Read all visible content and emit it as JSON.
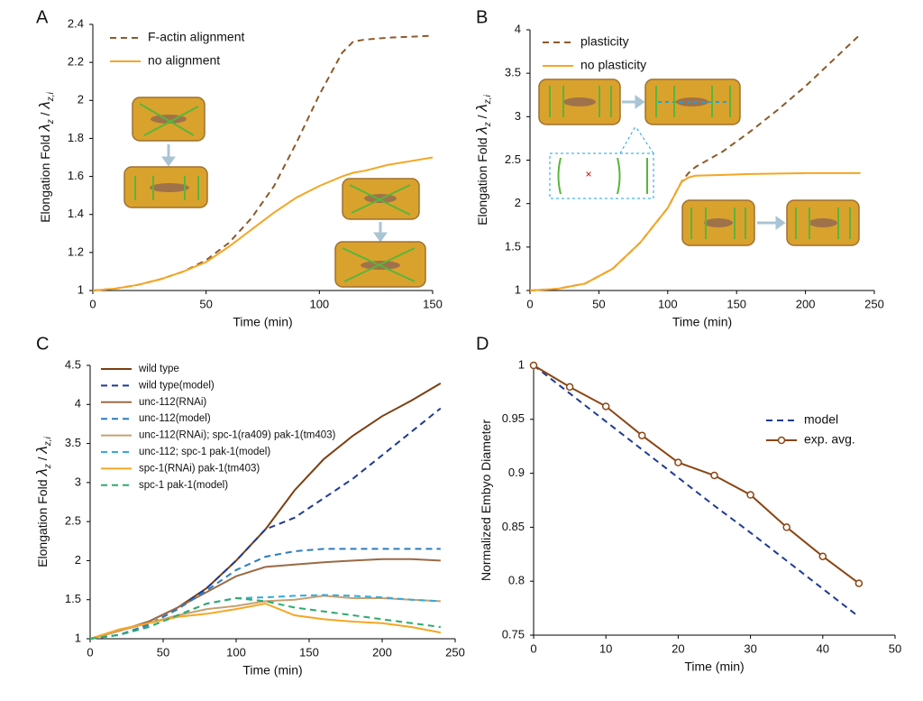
{
  "chart_data": [
    {
      "type": "line",
      "panel_label": "A",
      "xlabel": "Time (min)",
      "ylabel_parts": [
        {
          "text": "Elongation Fold  "
        },
        {
          "text": "λ",
          "italic": true
        },
        {
          "text": "z",
          "sub": true
        },
        {
          "text": " / "
        },
        {
          "text": "λ",
          "italic": true
        },
        {
          "text": "z,i",
          "sub": true
        }
      ],
      "x": [
        0,
        10,
        20,
        30,
        40,
        50,
        60,
        70,
        80,
        90,
        100,
        110,
        115,
        120,
        130,
        140,
        150
      ],
      "series": [
        {
          "name": "F-actin alignment",
          "color": "#8b5a2b",
          "dash": true,
          "values": [
            1,
            1.01,
            1.03,
            1.06,
            1.1,
            1.16,
            1.25,
            1.38,
            1.55,
            1.78,
            2.03,
            2.25,
            2.31,
            2.32,
            2.33,
            2.335,
            2.34
          ]
        },
        {
          "name": "no alignment",
          "color": "#f5a623",
          "dash": false,
          "values": [
            1,
            1.01,
            1.03,
            1.06,
            1.1,
            1.15,
            1.23,
            1.32,
            1.41,
            1.49,
            1.55,
            1.6,
            1.62,
            1.63,
            1.66,
            1.68,
            1.7
          ]
        }
      ],
      "xlim": [
        0,
        150
      ],
      "xticks": [
        0,
        50,
        100,
        150
      ],
      "ylim": [
        1,
        2.4
      ],
      "yticks": [
        1,
        1.2,
        1.4,
        1.6,
        1.8,
        2,
        2.2,
        2.4
      ],
      "legend": "upper left"
    },
    {
      "type": "line",
      "panel_label": "B",
      "xlabel": "Time (min)",
      "ylabel_parts": [
        {
          "text": "Elongation Fold  "
        },
        {
          "text": "λ",
          "italic": true
        },
        {
          "text": "z",
          "sub": true
        },
        {
          "text": " / "
        },
        {
          "text": "λ",
          "italic": true
        },
        {
          "text": "z,i",
          "sub": true
        }
      ],
      "x": [
        0,
        20,
        40,
        60,
        80,
        100,
        110,
        115,
        120,
        140,
        160,
        180,
        200,
        220,
        240
      ],
      "series": [
        {
          "name": "plasticity",
          "color": "#8b5a2b",
          "dash": true,
          "values": [
            1,
            1.02,
            1.08,
            1.25,
            1.55,
            1.95,
            2.25,
            2.35,
            2.42,
            2.6,
            2.83,
            3.08,
            3.35,
            3.65,
            3.95
          ]
        },
        {
          "name": "no plasticity",
          "color": "#f5a623",
          "dash": false,
          "values": [
            1,
            1.02,
            1.08,
            1.25,
            1.55,
            1.95,
            2.25,
            2.3,
            2.32,
            2.33,
            2.34,
            2.345,
            2.35,
            2.35,
            2.35
          ]
        }
      ],
      "xlim": [
        0,
        250
      ],
      "xticks": [
        0,
        50,
        100,
        150,
        200,
        250
      ],
      "ylim": [
        1,
        4
      ],
      "yticks": [
        1,
        1.5,
        2,
        2.5,
        3,
        3.5,
        4
      ],
      "legend": "upper left"
    },
    {
      "type": "line",
      "panel_label": "C",
      "xlabel": "Time (min)",
      "ylabel_parts": [
        {
          "text": "Elongation Fold  "
        },
        {
          "text": "λ",
          "italic": true
        },
        {
          "text": "z",
          "sub": true
        },
        {
          "text": " / "
        },
        {
          "text": "λ",
          "italic": true
        },
        {
          "text": "z,i",
          "sub": true
        }
      ],
      "x": [
        0,
        20,
        40,
        60,
        80,
        100,
        120,
        140,
        160,
        180,
        200,
        220,
        240
      ],
      "series": [
        {
          "name": "wild type",
          "color": "#7b3f10",
          "dash": false,
          "values": [
            1,
            1.1,
            1.22,
            1.4,
            1.65,
            2.0,
            2.4,
            2.9,
            3.3,
            3.6,
            3.85,
            4.05,
            4.27
          ]
        },
        {
          "name": "wild type(model)",
          "color": "#1f3a93",
          "dash": true,
          "values": [
            1,
            1.05,
            1.18,
            1.38,
            1.65,
            2.0,
            2.4,
            2.55,
            2.8,
            3.05,
            3.35,
            3.65,
            3.95
          ]
        },
        {
          "name": "unc-112(RNAi)",
          "color": "#9b6a45",
          "dash": false,
          "values": [
            1,
            1.1,
            1.22,
            1.4,
            1.6,
            1.8,
            1.92,
            1.95,
            1.98,
            2.0,
            2.02,
            2.02,
            2.0
          ]
        },
        {
          "name": "unc-112(model)",
          "color": "#2b7bc0",
          "dash": true,
          "values": [
            1,
            1.05,
            1.18,
            1.38,
            1.62,
            1.88,
            2.05,
            2.12,
            2.15,
            2.15,
            2.15,
            2.15,
            2.15
          ]
        },
        {
          "name": "unc-112(RNAi); spc-1(ra409) pak-1(tm403)",
          "color": "#c8a070",
          "dash": false,
          "values": [
            1,
            1.1,
            1.2,
            1.3,
            1.38,
            1.42,
            1.48,
            1.5,
            1.55,
            1.52,
            1.52,
            1.5,
            1.48
          ]
        },
        {
          "name": "unc-112; spc-1 pak-1(model)",
          "color": "#33aadd",
          "dash": true,
          "values": [
            1,
            1.05,
            1.15,
            1.3,
            1.45,
            1.52,
            1.53,
            1.55,
            1.56,
            1.55,
            1.53,
            1.5,
            1.48
          ]
        },
        {
          "name": "spc-1(RNAi) pak-1(tm403)",
          "color": "#f5a623",
          "dash": false,
          "values": [
            1,
            1.12,
            1.2,
            1.28,
            1.32,
            1.38,
            1.45,
            1.3,
            1.25,
            1.22,
            1.2,
            1.15,
            1.08
          ]
        },
        {
          "name": "spc-1 pak-1(model)",
          "color": "#2eaa6a",
          "dash": true,
          "values": [
            1,
            1.05,
            1.15,
            1.3,
            1.45,
            1.52,
            1.48,
            1.4,
            1.35,
            1.3,
            1.25,
            1.2,
            1.15
          ]
        }
      ],
      "xlim": [
        0,
        250
      ],
      "xticks": [
        0,
        50,
        100,
        150,
        200,
        250
      ],
      "ylim": [
        1,
        4.5
      ],
      "yticks": [
        1,
        1.5,
        2,
        2.5,
        3,
        3.5,
        4,
        4.5
      ],
      "legend": "upper left"
    },
    {
      "type": "line",
      "panel_label": "D",
      "xlabel": "Time (min)",
      "ylabel_parts": [
        {
          "text": "Normalized Embyo Diameter"
        }
      ],
      "x": [
        0,
        5,
        10,
        15,
        20,
        25,
        30,
        35,
        40,
        45
      ],
      "series": [
        {
          "name": "model",
          "color": "#1f3a93",
          "dash": true,
          "values": [
            1,
            0.974,
            0.948,
            0.922,
            0.896,
            0.87,
            0.845,
            0.819,
            0.793,
            0.767
          ]
        },
        {
          "name": "exp. avg.",
          "color": "#8b4513",
          "dash": false,
          "marker": "circle",
          "values": [
            1,
            0.98,
            0.962,
            0.935,
            0.91,
            0.898,
            0.88,
            0.85,
            0.823,
            0.798
          ]
        }
      ],
      "xlim": [
        0,
        50
      ],
      "xticks": [
        0,
        10,
        20,
        30,
        40,
        50
      ],
      "ylim": [
        0.75,
        1
      ],
      "yticks": [
        0.75,
        0.8,
        0.85,
        0.9,
        0.95,
        1
      ],
      "legend": "center right"
    }
  ]
}
